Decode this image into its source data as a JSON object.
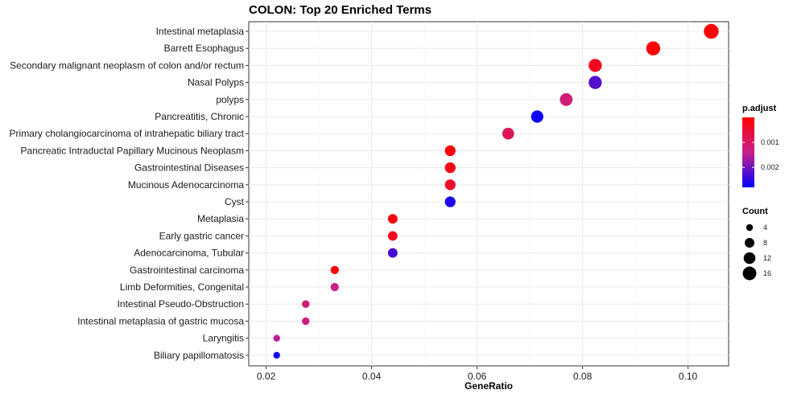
{
  "chart_data": {
    "type": "scatter",
    "title": "COLON: Top 20 Enriched Terms",
    "xlabel": "GeneRatio",
    "ylabel": "",
    "xlim": [
      0.0167,
      0.1077
    ],
    "x_ticks": [
      0.02,
      0.04,
      0.06,
      0.08,
      0.1
    ],
    "x_tick_labels": [
      "0.02",
      "0.04",
      "0.06",
      "0.08",
      "0.10"
    ],
    "grid": true,
    "color_legend": {
      "title": "p.adjust",
      "min": 0.0,
      "max": 0.0028,
      "ticks": [
        0.001,
        0.002
      ],
      "tick_labels": [
        "0.001",
        "0.002"
      ],
      "low_color": "#ff0000",
      "mid_color": "#c8208c",
      "high_color": "#0000ff"
    },
    "size_legend": {
      "title": "Count",
      "values": [
        4,
        8,
        12,
        16
      ],
      "labels": [
        "4",
        "8",
        "12",
        "16"
      ]
    },
    "points": [
      {
        "term": "Intestinal metaplasia",
        "x": 0.1044,
        "count": 19,
        "p_adjust": 5e-05
      },
      {
        "term": "Barrett Esophagus",
        "x": 0.0934,
        "count": 17,
        "p_adjust": 0.0001
      },
      {
        "term": "Secondary malignant neoplasm of colon and/or rectum",
        "x": 0.0824,
        "count": 15,
        "p_adjust": 0.0003
      },
      {
        "term": "Nasal Polyps",
        "x": 0.0824,
        "count": 15,
        "p_adjust": 0.0022
      },
      {
        "term": "polyps",
        "x": 0.0769,
        "count": 14,
        "p_adjust": 0.0012
      },
      {
        "term": "Pancreatitis, Chronic",
        "x": 0.0714,
        "count": 13,
        "p_adjust": 0.0027
      },
      {
        "term": "Primary cholangiocarcinoma of intrahepatic biliary tract",
        "x": 0.0659,
        "count": 12,
        "p_adjust": 0.0009
      },
      {
        "term": "Pancreatic Intraductal Papillary Mucinous Neoplasm",
        "x": 0.0549,
        "count": 10,
        "p_adjust": 0.0001
      },
      {
        "term": "Gastrointestinal Diseases",
        "x": 0.0549,
        "count": 10,
        "p_adjust": 0.0002
      },
      {
        "term": "Mucinous Adenocarcinoma",
        "x": 0.0549,
        "count": 10,
        "p_adjust": 0.0004
      },
      {
        "term": "Cyst",
        "x": 0.0549,
        "count": 10,
        "p_adjust": 0.0026
      },
      {
        "term": "Metaplasia",
        "x": 0.044,
        "count": 8,
        "p_adjust": 0.0001
      },
      {
        "term": "Early gastric cancer",
        "x": 0.044,
        "count": 8,
        "p_adjust": 0.0003
      },
      {
        "term": "Adenocarcinoma, Tubular",
        "x": 0.044,
        "count": 8,
        "p_adjust": 0.0023
      },
      {
        "term": "Gastrointestinal carcinoma",
        "x": 0.033,
        "count": 6,
        "p_adjust": 0.0001
      },
      {
        "term": "Limb Deformities, Congenital",
        "x": 0.033,
        "count": 6,
        "p_adjust": 0.0014
      },
      {
        "term": "Intestinal Pseudo-Obstruction",
        "x": 0.0275,
        "count": 5,
        "p_adjust": 0.0012
      },
      {
        "term": "Intestinal metaplasia of gastric mucosa",
        "x": 0.0275,
        "count": 5,
        "p_adjust": 0.0013
      },
      {
        "term": "Laryngitis",
        "x": 0.022,
        "count": 4,
        "p_adjust": 0.0015
      },
      {
        "term": "Biliary papillomatosis",
        "x": 0.022,
        "count": 4,
        "p_adjust": 0.0027
      }
    ]
  }
}
